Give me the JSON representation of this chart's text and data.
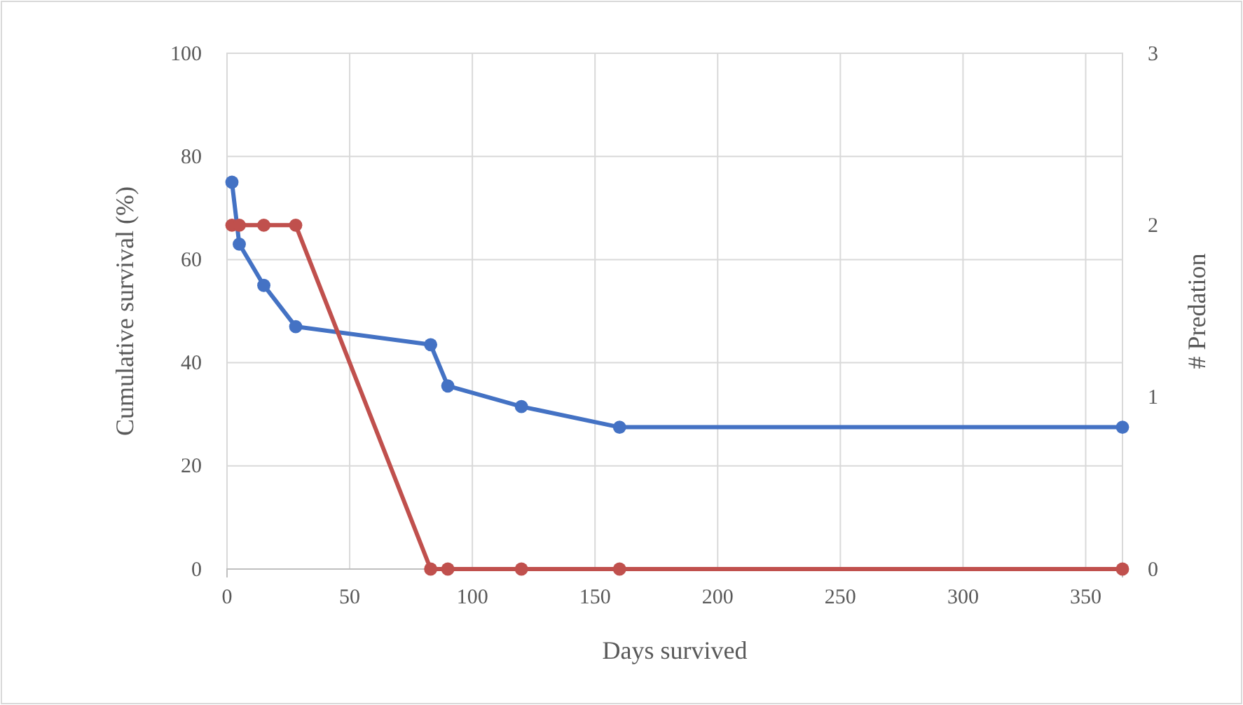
{
  "chart_data": {
    "type": "line",
    "xlabel": "Days survived",
    "ylabel": "Cumulative  survival  (%)",
    "y2label": "# Predation",
    "xlim": [
      0,
      365
    ],
    "xticks": [
      0,
      50,
      100,
      150,
      200,
      250,
      300,
      350
    ],
    "ylim": [
      0,
      100
    ],
    "yticks": [
      0,
      20,
      40,
      60,
      80,
      100
    ],
    "y2lim": [
      0,
      3
    ],
    "y2ticks": [
      0,
      1,
      2,
      3
    ],
    "grid": true,
    "marker": "circle",
    "line_style": "solid",
    "series": [
      {
        "color": "#4472c4",
        "x": [
          2,
          5,
          15,
          28,
          83,
          90,
          120,
          160,
          365
        ],
        "values": [
          75,
          63,
          55,
          47,
          43.5,
          35.5,
          31.5,
          27.5,
          27.5
        ]
      },
      {
        "color": "#c0504d",
        "axis": "y2",
        "x": [
          2,
          5,
          15,
          28,
          83,
          90,
          120,
          160,
          365
        ],
        "values": [
          2,
          2,
          2,
          2,
          0,
          0,
          0,
          0,
          0
        ]
      }
    ]
  }
}
